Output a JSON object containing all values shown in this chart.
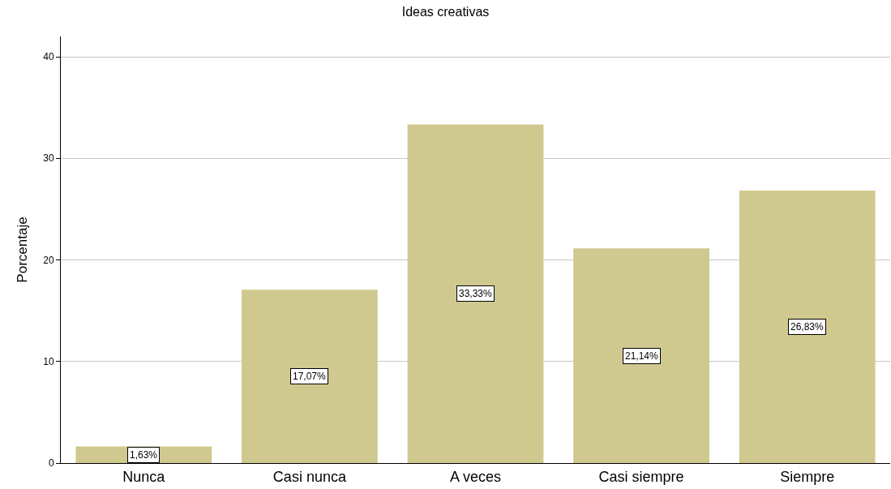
{
  "chart_data": {
    "type": "bar",
    "title": "Ideas creativas",
    "ylabel": "Porcentaje",
    "categories": [
      "Nunca",
      "Casi nunca",
      "A veces",
      "Casi siempre",
      "Siempre"
    ],
    "values": [
      1.63,
      17.07,
      33.33,
      21.14,
      26.83
    ],
    "value_labels": [
      "1,63%",
      "17,07%",
      "33,33%",
      "21,14%",
      "26,83%"
    ],
    "color": "#d0c98f",
    "ylim": [
      0,
      42
    ],
    "yticks": [
      0,
      10,
      20,
      30,
      40
    ],
    "grid": "y",
    "legend": false
  }
}
